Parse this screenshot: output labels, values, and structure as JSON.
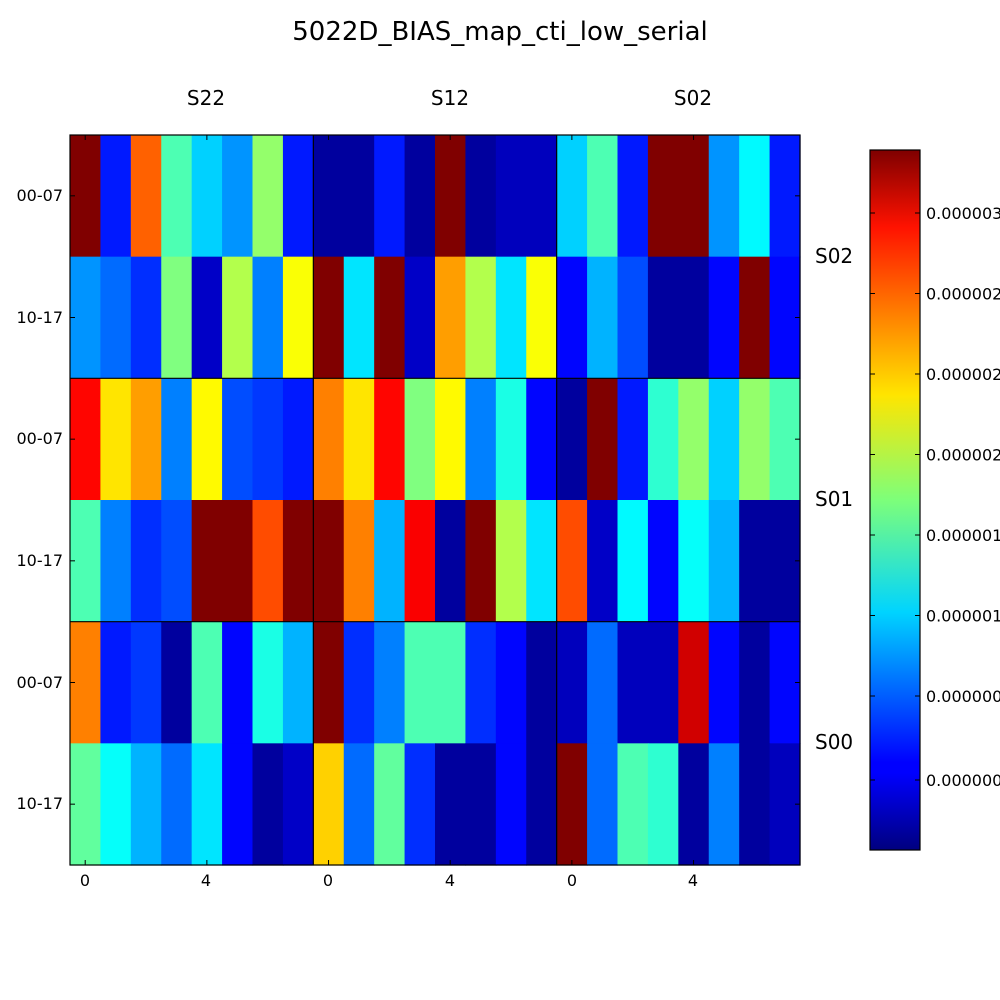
{
  "chart_data": {
    "type": "heatmap",
    "title": "5022D_BIAS_map_cti_low_serial",
    "colormap": "jet",
    "grid": false,
    "top_labels": [
      "S22",
      "S12",
      "S02"
    ],
    "right_labels": [
      "S02",
      "S01",
      "S00"
    ],
    "y_tick_labels": [
      "00-07",
      "10-17",
      "00-07",
      "10-17",
      "00-07",
      "10-17"
    ],
    "x_tick_labels": [
      "0",
      "4",
      "0",
      "4",
      "0",
      "4"
    ],
    "colorbar": {
      "range": [
        0.0,
        1.0
      ],
      "tick_fractions": [
        0.1,
        0.22,
        0.335,
        0.45,
        0.565,
        0.68,
        0.795,
        0.91
      ],
      "tick_labels": [
        "0.000000",
        "0.000000",
        "0.000001",
        "0.000001",
        "0.000002",
        "0.000002",
        "0.000002",
        "0.000003"
      ]
    },
    "rows": [
      {
        "label": "00-07",
        "values": [
          1.0,
          0.15,
          0.78,
          0.45,
          0.33,
          0.27,
          0.52,
          0.15,
          0.03,
          0.03,
          0.15,
          0.03,
          1.0,
          0.03,
          0.06,
          0.06,
          0.33,
          0.45,
          0.15,
          1.0,
          1.0,
          0.27,
          0.37,
          0.15
        ]
      },
      {
        "label": "10-17",
        "values": [
          0.27,
          0.23,
          0.17,
          0.5,
          0.07,
          0.55,
          0.25,
          0.62,
          1.0,
          0.35,
          1.0,
          0.07,
          0.72,
          0.55,
          0.35,
          0.62,
          0.13,
          0.3,
          0.2,
          0.03,
          0.03,
          0.13,
          1.0,
          0.13
        ]
      },
      {
        "label": "00-07",
        "values": [
          0.87,
          0.65,
          0.72,
          0.25,
          0.63,
          0.2,
          0.18,
          0.15,
          0.75,
          0.65,
          0.87,
          0.5,
          0.63,
          0.25,
          0.4,
          0.13,
          0.03,
          1.0,
          0.15,
          0.42,
          0.52,
          0.33,
          0.52,
          0.45
        ]
      },
      {
        "label": "10-17",
        "values": [
          0.45,
          0.25,
          0.17,
          0.2,
          1.0,
          1.0,
          0.8,
          1.0,
          1.0,
          0.75,
          0.3,
          0.88,
          0.03,
          1.0,
          0.55,
          0.35,
          0.8,
          0.07,
          0.37,
          0.13,
          0.38,
          0.3,
          0.03,
          0.03
        ]
      },
      {
        "label": "00-07",
        "values": [
          0.75,
          0.15,
          0.18,
          0.03,
          0.45,
          0.13,
          0.4,
          0.3,
          1.0,
          0.17,
          0.25,
          0.45,
          0.45,
          0.17,
          0.13,
          0.03,
          0.06,
          0.23,
          0.06,
          0.06,
          0.92,
          0.13,
          0.03,
          0.13
        ]
      },
      {
        "label": "10-17",
        "values": [
          0.47,
          0.38,
          0.3,
          0.23,
          0.35,
          0.13,
          0.03,
          0.07,
          0.67,
          0.23,
          0.47,
          0.17,
          0.03,
          0.03,
          0.13,
          0.03,
          1.0,
          0.23,
          0.45,
          0.42,
          0.03,
          0.25,
          0.03,
          0.06
        ]
      }
    ]
  }
}
